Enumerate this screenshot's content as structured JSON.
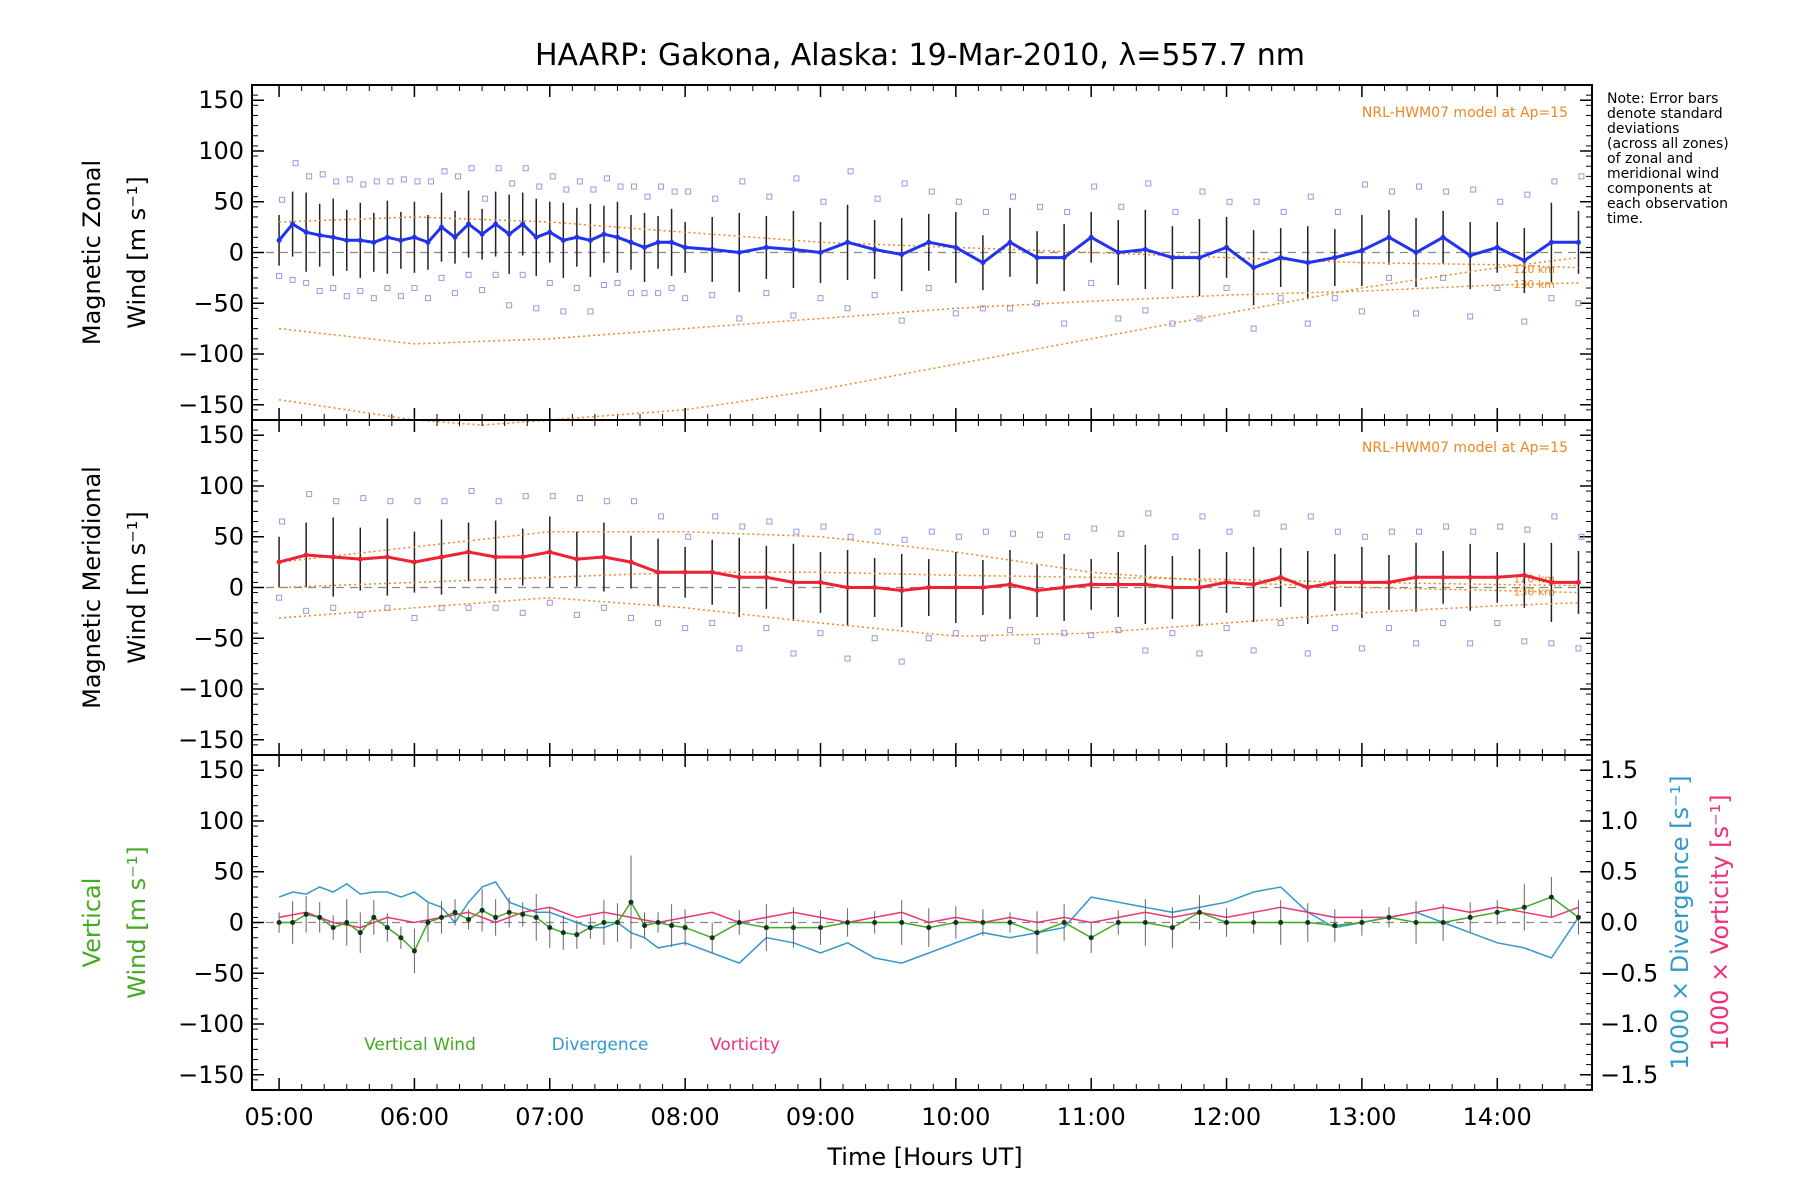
{
  "title": "HAARP: Gakona,  Alaska: 19-Mar-2010, λ=557.7 nm",
  "note": [
    "Note: Error bars",
    "denote standard",
    "deviations",
    "(across all zones)",
    "of zonal and",
    "meridional wind",
    "components at",
    "each observation",
    "time."
  ],
  "colors": {
    "zonal": "#2233ee",
    "meridional": "#ee2233",
    "vertical": "#44aa22",
    "divergence": "#3399cc",
    "vorticity": "#ee3377",
    "model": "#ee8822",
    "scatter": "#9999dd",
    "error_bar": "#222222",
    "zero_line": "#888888"
  },
  "chart_data": [
    {
      "type": "line",
      "panel": "zonal",
      "ylabel_line1": "Magnetic Zonal",
      "ylabel_line2": "Wind [m s⁻¹]",
      "ylim": [
        -165,
        165
      ],
      "yticks": [
        150,
        100,
        50,
        0,
        -50,
        -100,
        -150
      ],
      "model_label": "NRL-HWM07 model at Ap=15",
      "model_altitudes": [
        "120 km",
        "130 km"
      ],
      "series": [
        {
          "name": "Zonal Wind",
          "x": [
            5.0,
            5.1,
            5.2,
            5.3,
            5.4,
            5.5,
            5.6,
            5.7,
            5.8,
            5.9,
            6.0,
            6.1,
            6.2,
            6.3,
            6.4,
            6.5,
            6.6,
            6.7,
            6.8,
            6.9,
            7.0,
            7.1,
            7.2,
            7.3,
            7.4,
            7.5,
            7.6,
            7.7,
            7.8,
            7.9,
            8.0,
            8.2,
            8.4,
            8.6,
            8.8,
            9.0,
            9.2,
            9.4,
            9.6,
            9.8,
            10.0,
            10.2,
            10.4,
            10.6,
            10.8,
            11.0,
            11.2,
            11.4,
            11.6,
            11.8,
            12.0,
            12.2,
            12.4,
            12.6,
            12.8,
            13.0,
            13.2,
            13.4,
            13.6,
            13.8,
            14.0,
            14.2,
            14.4,
            14.6
          ],
          "values": [
            12,
            28,
            20,
            17,
            15,
            12,
            12,
            10,
            15,
            12,
            15,
            10,
            25,
            15,
            28,
            18,
            28,
            18,
            28,
            15,
            20,
            12,
            15,
            12,
            18,
            15,
            10,
            5,
            10,
            10,
            5,
            3,
            0,
            5,
            3,
            0,
            10,
            3,
            -2,
            10,
            5,
            -10,
            10,
            -5,
            -5,
            15,
            0,
            3,
            -5,
            -5,
            5,
            -15,
            -5,
            -10,
            -5,
            2,
            15,
            0,
            15,
            -3,
            5,
            -8,
            10,
            10
          ]
        },
        {
          "name": "Model 120 km",
          "x": [
            5.0,
            6.0,
            7.0,
            8.0,
            9.0,
            10.0,
            11.0,
            12.0,
            13.0,
            14.0,
            14.6
          ],
          "values": [
            30,
            35,
            30,
            20,
            10,
            5,
            0,
            -5,
            -10,
            -12,
            -15
          ]
        },
        {
          "name": "Model 130 km",
          "x": [
            5.0,
            6.0,
            7.0,
            8.0,
            9.0,
            10.0,
            11.0,
            12.0,
            13.0,
            14.0,
            14.6
          ],
          "values": [
            -75,
            -90,
            -85,
            -75,
            -65,
            -55,
            -48,
            -42,
            -38,
            -32,
            -30
          ]
        },
        {
          "name": "Model low",
          "x": [
            5.0,
            5.5,
            6.0,
            6.5,
            7.0,
            8.0,
            9.0,
            10.0,
            11.0,
            12.0,
            13.0,
            14.0,
            14.6
          ],
          "values": [
            -145,
            -155,
            -165,
            -170,
            -165,
            -155,
            -135,
            -110,
            -85,
            -60,
            -35,
            -15,
            -5
          ]
        }
      ]
    },
    {
      "type": "line",
      "panel": "meridional",
      "ylabel_line1": "Magnetic Meridional",
      "ylabel_line2": "Wind [m s⁻¹]",
      "ylim": [
        -165,
        165
      ],
      "yticks": [
        150,
        100,
        50,
        0,
        -50,
        -100,
        -150
      ],
      "model_label": "NRL-HWM07 model at Ap=15",
      "model_altitudes": [
        "120 km",
        "130 km"
      ],
      "series": [
        {
          "name": "Meridional Wind",
          "x": [
            5.0,
            5.2,
            5.4,
            5.6,
            5.8,
            6.0,
            6.2,
            6.4,
            6.6,
            6.8,
            7.0,
            7.2,
            7.4,
            7.6,
            7.8,
            8.0,
            8.2,
            8.4,
            8.6,
            8.8,
            9.0,
            9.2,
            9.4,
            9.6,
            9.8,
            10.0,
            10.2,
            10.4,
            10.6,
            10.8,
            11.0,
            11.2,
            11.4,
            11.6,
            11.8,
            12.0,
            12.2,
            12.4,
            12.6,
            12.8,
            13.0,
            13.2,
            13.4,
            13.6,
            13.8,
            14.0,
            14.2,
            14.4,
            14.6
          ],
          "values": [
            25,
            32,
            30,
            28,
            30,
            25,
            30,
            35,
            30,
            30,
            35,
            28,
            30,
            25,
            15,
            15,
            15,
            10,
            10,
            5,
            5,
            0,
            0,
            -3,
            0,
            0,
            0,
            3,
            -3,
            0,
            3,
            3,
            3,
            0,
            0,
            5,
            3,
            10,
            0,
            5,
            5,
            5,
            10,
            10,
            10,
            10,
            12,
            5,
            5
          ]
        },
        {
          "name": "Model upper",
          "x": [
            5.0,
            6.0,
            7.0,
            8.0,
            9.0,
            10.0,
            11.0,
            12.0,
            13.0,
            14.0,
            14.6
          ],
          "values": [
            25,
            40,
            55,
            55,
            50,
            35,
            15,
            5,
            0,
            -3,
            -5
          ]
        },
        {
          "name": "Model 120 km",
          "x": [
            5.0,
            6.0,
            7.0,
            8.0,
            9.0,
            10.0,
            11.0,
            12.0,
            13.0,
            14.0,
            14.6
          ],
          "values": [
            0,
            5,
            10,
            15,
            15,
            12,
            10,
            8,
            5,
            3,
            2
          ]
        },
        {
          "name": "Model 130 km",
          "x": [
            5.0,
            6.0,
            7.0,
            8.0,
            9.0,
            10.0,
            11.0,
            12.0,
            13.0,
            14.0,
            14.6
          ],
          "values": [
            -30,
            -20,
            -10,
            -20,
            -35,
            -48,
            -45,
            -35,
            -25,
            -18,
            -15
          ]
        }
      ]
    },
    {
      "type": "line",
      "panel": "vertical",
      "ylabel_line1": "Vertical",
      "ylabel_line2": "Wind [m s⁻¹]",
      "ylim": [
        -165,
        165
      ],
      "yticks": [
        150,
        100,
        50,
        0,
        -50,
        -100,
        -150
      ],
      "y2label_div": "1000 × Divergence [s⁻¹]",
      "y2label_vort": "1000 × Vorticity [s⁻¹]",
      "y2lim": [
        -1.65,
        1.65
      ],
      "y2ticks": [
        1.5,
        1.0,
        0.5,
        0.0,
        -0.5,
        -1.0,
        -1.5
      ],
      "y2ticklabels": [
        "1.5",
        "1.0",
        "0.5",
        "0.0",
        "−0.5",
        "−1.0",
        "−1.5"
      ],
      "legend": [
        "Vertical Wind",
        "Divergence",
        "Vorticity"
      ],
      "series": [
        {
          "name": "Vertical Wind",
          "x": [
            5.0,
            5.1,
            5.2,
            5.3,
            5.4,
            5.5,
            5.6,
            5.7,
            5.8,
            5.9,
            6.0,
            6.1,
            6.2,
            6.3,
            6.4,
            6.5,
            6.6,
            6.7,
            6.8,
            6.9,
            7.0,
            7.1,
            7.2,
            7.3,
            7.4,
            7.5,
            7.6,
            7.7,
            7.8,
            7.9,
            8.0,
            8.2,
            8.4,
            8.6,
            8.8,
            9.0,
            9.2,
            9.4,
            9.6,
            9.8,
            10.0,
            10.2,
            10.4,
            10.6,
            10.8,
            11.0,
            11.2,
            11.4,
            11.6,
            11.8,
            12.0,
            12.2,
            12.4,
            12.6,
            12.8,
            13.0,
            13.2,
            13.4,
            13.6,
            13.8,
            14.0,
            14.2,
            14.4,
            14.6
          ],
          "values": [
            0,
            0,
            8,
            5,
            -5,
            0,
            -10,
            5,
            -5,
            -15,
            -28,
            0,
            5,
            10,
            3,
            12,
            5,
            10,
            8,
            5,
            -5,
            -10,
            -12,
            -5,
            0,
            0,
            20,
            -3,
            0,
            -3,
            -5,
            -15,
            0,
            -5,
            -5,
            -5,
            0,
            0,
            0,
            -5,
            0,
            0,
            0,
            -10,
            0,
            -15,
            0,
            0,
            -5,
            10,
            0,
            0,
            0,
            0,
            -3,
            0,
            5,
            0,
            0,
            5,
            10,
            15,
            25,
            5
          ]
        },
        {
          "name": "Divergence",
          "x": [
            5.0,
            5.1,
            5.2,
            5.3,
            5.4,
            5.5,
            5.6,
            5.7,
            5.8,
            5.9,
            6.0,
            6.1,
            6.2,
            6.3,
            6.4,
            6.5,
            6.6,
            6.7,
            6.8,
            6.9,
            7.0,
            7.1,
            7.2,
            7.3,
            7.4,
            7.5,
            7.6,
            7.7,
            7.8,
            8.0,
            8.2,
            8.4,
            8.6,
            8.8,
            9.0,
            9.2,
            9.4,
            9.6,
            9.8,
            10.0,
            10.2,
            10.4,
            10.6,
            10.8,
            11.0,
            11.2,
            11.4,
            11.6,
            11.8,
            12.0,
            12.2,
            12.4,
            12.6,
            12.8,
            13.0,
            13.2,
            13.4,
            13.6,
            13.8,
            14.0,
            14.2,
            14.4,
            14.6
          ],
          "values": [
            0.25,
            0.3,
            0.28,
            0.35,
            0.3,
            0.38,
            0.28,
            0.3,
            0.3,
            0.25,
            0.3,
            0.2,
            0.15,
            0.0,
            0.2,
            0.35,
            0.4,
            0.2,
            0.15,
            0.1,
            0.1,
            0.05,
            0.0,
            -0.05,
            -0.05,
            0.0,
            -0.1,
            -0.15,
            -0.25,
            -0.2,
            -0.3,
            -0.4,
            -0.15,
            -0.2,
            -0.3,
            -0.2,
            -0.35,
            -0.4,
            -0.3,
            -0.2,
            -0.1,
            -0.15,
            -0.1,
            -0.05,
            0.25,
            0.2,
            0.15,
            0.1,
            0.15,
            0.2,
            0.3,
            0.35,
            0.1,
            -0.05,
            0.0,
            0.05,
            0.1,
            0.0,
            -0.1,
            -0.2,
            -0.25,
            -0.35,
            0.05
          ]
        },
        {
          "name": "Vorticity",
          "x": [
            5.0,
            5.2,
            5.4,
            5.6,
            5.8,
            6.0,
            6.2,
            6.4,
            6.6,
            6.8,
            7.0,
            7.2,
            7.4,
            7.6,
            7.8,
            8.0,
            8.2,
            8.4,
            8.6,
            8.8,
            9.0,
            9.2,
            9.4,
            9.6,
            9.8,
            10.0,
            10.2,
            10.4,
            10.6,
            10.8,
            11.0,
            11.2,
            11.4,
            11.6,
            11.8,
            12.0,
            12.2,
            12.4,
            12.6,
            12.8,
            13.0,
            13.2,
            13.4,
            13.6,
            13.8,
            14.0,
            14.2,
            14.4,
            14.6
          ],
          "values": [
            0.05,
            0.1,
            0.0,
            -0.05,
            0.05,
            0.0,
            0.05,
            0.1,
            0.0,
            0.1,
            0.15,
            0.05,
            0.1,
            0.05,
            0.0,
            0.05,
            0.1,
            0.0,
            0.05,
            0.1,
            0.05,
            0.0,
            0.05,
            0.1,
            0.0,
            0.05,
            0.0,
            0.05,
            0.0,
            0.05,
            0.0,
            0.05,
            0.1,
            0.05,
            0.1,
            0.05,
            0.1,
            0.15,
            0.1,
            0.05,
            0.05,
            0.05,
            0.1,
            0.15,
            0.1,
            0.15,
            0.1,
            0.05,
            0.15
          ]
        }
      ]
    }
  ],
  "x_axis": {
    "label": "Time [Hours UT]",
    "xlim": [
      4.8,
      14.7
    ],
    "ticks": [
      5,
      6,
      7,
      8,
      9,
      10,
      11,
      12,
      13,
      14
    ],
    "ticklabels": [
      "05:00",
      "06:00",
      "07:00",
      "08:00",
      "09:00",
      "10:00",
      "11:00",
      "12:00",
      "13:00",
      "14:00"
    ]
  }
}
